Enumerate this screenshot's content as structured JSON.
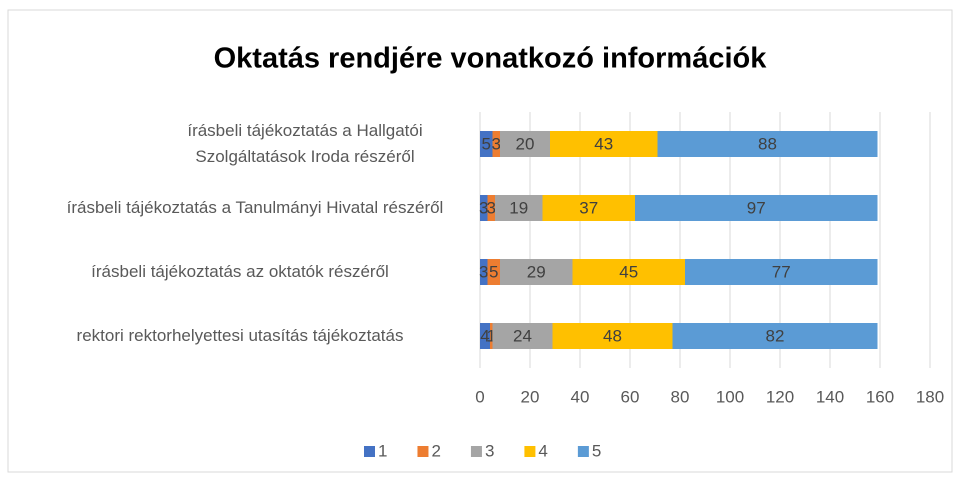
{
  "chart_data": {
    "type": "stacked_barh",
    "title": "Oktatás rendjére vonatkozó információk",
    "categories": [
      "írásbeli tájékoztatás a Hallgatói Szolgáltatások Iroda részéről",
      "írásbeli tájékoztatás a Tanulmányi Hivatal részéről",
      "írásbeli tájékoztatás az oktatók részéről",
      "rektori rektorhelyettesi utasítás tájékoztatás"
    ],
    "series": [
      {
        "name": "1",
        "color": "#4472c4",
        "values": [
          5,
          3,
          3,
          4
        ]
      },
      {
        "name": "2",
        "color": "#ed7d31",
        "values": [
          3,
          3,
          5,
          1
        ]
      },
      {
        "name": "3",
        "color": "#a5a5a5",
        "values": [
          20,
          19,
          29,
          24
        ]
      },
      {
        "name": "4",
        "color": "#ffc000",
        "values": [
          43,
          37,
          45,
          48
        ]
      },
      {
        "name": "5",
        "color": "#5b9bd5",
        "values": [
          88,
          97,
          77,
          82
        ]
      }
    ],
    "xlim": [
      0,
      180
    ],
    "xticks": [
      0,
      20,
      40,
      60,
      80,
      100,
      120,
      140,
      160,
      180
    ],
    "grid": true,
    "legend": "bottom"
  }
}
